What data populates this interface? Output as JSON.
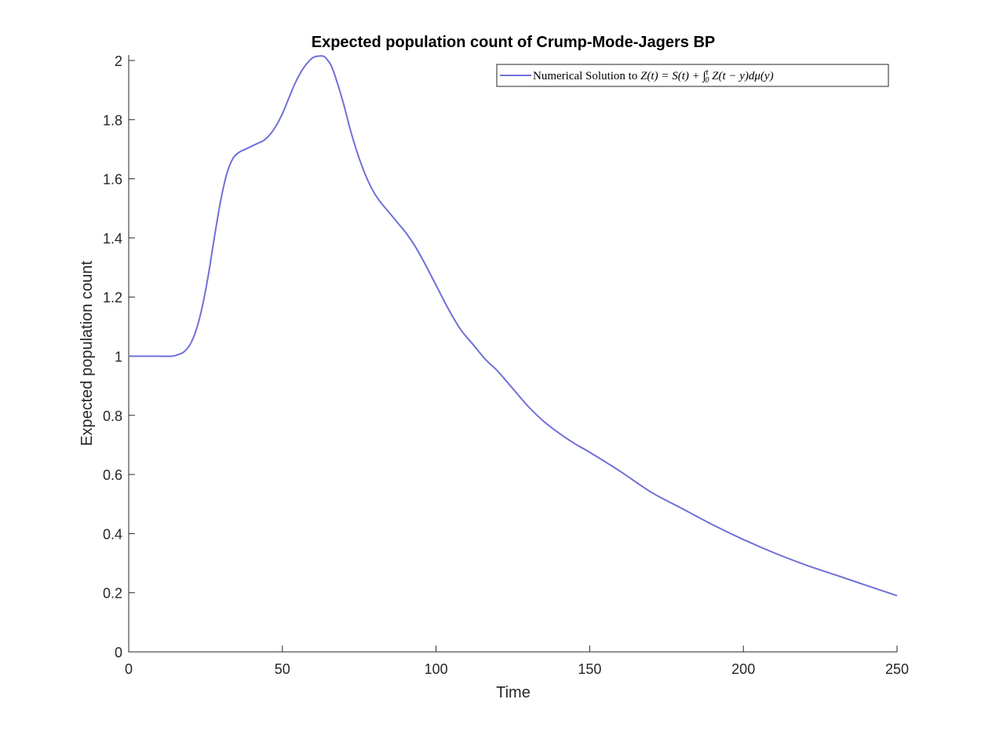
{
  "chart_data": {
    "type": "line",
    "title": "Expected population count of Crump-Mode-Jagers BP",
    "xlabel": "Time",
    "ylabel": "Expected population count",
    "xlim": [
      0,
      250
    ],
    "ylim": [
      0,
      2
    ],
    "xticks": [
      0,
      50,
      100,
      150,
      200,
      250
    ],
    "xtick_labels": [
      "0",
      "50",
      "100",
      "150",
      "200",
      "250"
    ],
    "yticks": [
      0,
      0.2,
      0.4,
      0.6,
      0.8,
      1,
      1.2,
      1.4,
      1.6,
      1.8,
      2
    ],
    "ytick_labels": [
      "0",
      "0.2",
      "0.4",
      "0.6",
      "0.8",
      "1",
      "1.2",
      "1.4",
      "1.6",
      "1.8",
      "2"
    ],
    "grid": false,
    "legend_position": "top-right",
    "legend": {
      "label_plain": "Numerical Solution to ",
      "label_math": "Z(t) = S(t) + ∫",
      "label_math_sup": "t",
      "label_math_sub": "0",
      "label_math_tail": " Z(t − y)dμ(y)"
    },
    "series": [
      {
        "name": "Numerical Solution to Z(t) = S(t) + ∫_0^t Z(t-y)dμ(y)",
        "color": "#7070d8",
        "x": [
          0,
          5,
          10,
          14,
          16,
          18,
          20,
          22,
          24,
          26,
          28,
          30,
          32,
          34,
          36,
          38,
          40,
          42,
          44,
          46,
          48,
          50,
          52,
          54,
          56,
          58,
          60,
          62,
          63,
          64,
          66,
          68,
          70,
          72,
          74,
          76,
          78,
          80,
          82,
          84,
          86,
          88,
          90,
          93,
          96,
          100,
          104,
          108,
          112,
          116,
          120,
          125,
          130,
          135,
          140,
          145,
          150,
          160,
          170,
          180,
          190,
          200,
          210,
          220,
          230,
          240,
          250
        ],
        "y": [
          1.0,
          1.0,
          1.0,
          1.0,
          1.005,
          1.015,
          1.04,
          1.09,
          1.17,
          1.28,
          1.41,
          1.53,
          1.62,
          1.67,
          1.69,
          1.7,
          1.71,
          1.72,
          1.73,
          1.75,
          1.78,
          1.82,
          1.87,
          1.92,
          1.96,
          1.99,
          2.01,
          2.015,
          2.015,
          2.01,
          1.98,
          1.92,
          1.85,
          1.77,
          1.7,
          1.64,
          1.59,
          1.55,
          1.52,
          1.495,
          1.47,
          1.445,
          1.42,
          1.375,
          1.32,
          1.24,
          1.16,
          1.09,
          1.04,
          0.99,
          0.95,
          0.89,
          0.83,
          0.78,
          0.74,
          0.705,
          0.675,
          0.61,
          0.54,
          0.485,
          0.43,
          0.38,
          0.335,
          0.295,
          0.26,
          0.225,
          0.19
        ]
      }
    ]
  }
}
